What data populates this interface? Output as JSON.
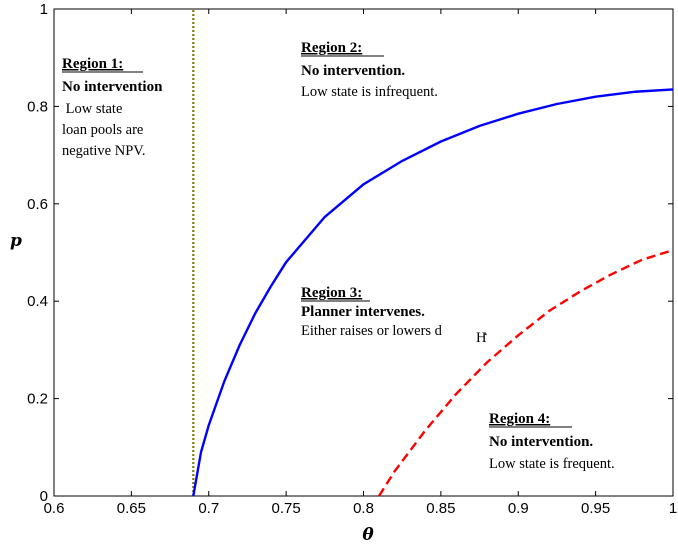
{
  "chart_data": {
    "type": "line",
    "xlabel": "θ",
    "ylabel": "p",
    "xlim": [
      0.6,
      1.0
    ],
    "ylim": [
      0,
      1
    ],
    "xticks": [
      "0.6",
      "0.65",
      "0.7",
      "0.75",
      "0.8",
      "0.85",
      "0.9",
      "0.95",
      "1"
    ],
    "yticks": [
      "0",
      "0.2",
      "0.4",
      "0.6",
      "0.8",
      "1"
    ],
    "grid": false,
    "series": [
      {
        "style": "dotted",
        "color": "#808000",
        "x": [
          0.69,
          0.69
        ],
        "y": [
          0,
          1
        ]
      },
      {
        "style": "solid",
        "color": "#0000ff",
        "x": [
          0.69,
          0.695,
          0.7,
          0.71,
          0.72,
          0.73,
          0.74,
          0.75,
          0.775,
          0.8,
          0.825,
          0.85,
          0.875,
          0.9,
          0.925,
          0.95,
          0.975,
          1.0
        ],
        "y": [
          0.0,
          0.09,
          0.145,
          0.235,
          0.31,
          0.375,
          0.43,
          0.48,
          0.573,
          0.64,
          0.688,
          0.728,
          0.76,
          0.785,
          0.805,
          0.82,
          0.83,
          0.835
        ]
      },
      {
        "style": "dashed",
        "color": "#ff0000",
        "x": [
          0.81,
          0.82,
          0.84,
          0.86,
          0.88,
          0.9,
          0.92,
          0.94,
          0.96,
          0.98,
          1.0
        ],
        "y": [
          0.0,
          0.05,
          0.135,
          0.21,
          0.275,
          0.33,
          0.38,
          0.42,
          0.455,
          0.485,
          0.505
        ]
      }
    ],
    "annotations": [
      {
        "lines": [
          "Region 1:",
          "No intervention",
          " Low state",
          "loan pools are",
          "negative NPV."
        ]
      },
      {
        "lines": [
          "Region 2:",
          "No intervention.",
          "Low state is infrequent."
        ]
      },
      {
        "lines": [
          "Region 3:",
          "Planner intervenes.",
          "Either raises or lowers d",
          "H",
          "."
        ]
      },
      {
        "lines": [
          "Region 4:",
          "No intervention.",
          "Low state is frequent."
        ]
      }
    ]
  }
}
